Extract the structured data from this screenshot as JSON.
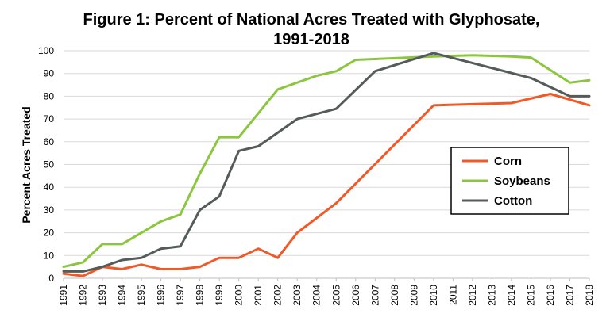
{
  "chart_data": {
    "type": "line",
    "title_line1": "Figure 1: Percent of National Acres Treated with Glyphosate,",
    "title_line2": "1991-2018",
    "ylabel": "Percent Acres Treated",
    "xlabel": "",
    "ylim": [
      0,
      100
    ],
    "y_ticks": [
      0,
      10,
      20,
      30,
      40,
      50,
      60,
      70,
      80,
      90,
      100
    ],
    "grid": "horizontal",
    "legend_position": "right",
    "x": [
      "1991",
      "1992",
      "1993",
      "1994",
      "1995",
      "1996",
      "1997",
      "1998",
      "1999",
      "2000",
      "2001",
      "2002",
      "2003",
      "2004",
      "2005",
      "2006",
      "2007",
      "2008",
      "2009",
      "2010",
      "2011",
      "2012",
      "2013",
      "2014",
      "2015",
      "2016",
      "2017",
      "2018"
    ],
    "series": [
      {
        "name": "Corn",
        "color": "#f05a28",
        "points": [
          [
            1991,
            2
          ],
          [
            1992,
            1
          ],
          [
            1993,
            5
          ],
          [
            1994,
            4
          ],
          [
            1995,
            6
          ],
          [
            1996,
            4
          ],
          [
            1997,
            4
          ],
          [
            1998,
            5
          ],
          [
            1999,
            9
          ],
          [
            2000,
            9
          ],
          [
            2001,
            13
          ],
          [
            2002,
            9
          ],
          [
            2003,
            20
          ],
          [
            2005,
            33
          ],
          [
            2010,
            76
          ],
          [
            2012,
            76.5
          ],
          [
            2014,
            77
          ],
          [
            2016,
            81
          ],
          [
            2018,
            76
          ]
        ]
      },
      {
        "name": "Soybeans",
        "color": "#8cc63f",
        "points": [
          [
            1991,
            5
          ],
          [
            1992,
            7
          ],
          [
            1993,
            15
          ],
          [
            1994,
            15
          ],
          [
            1995,
            20
          ],
          [
            1996,
            25
          ],
          [
            1997,
            28
          ],
          [
            1998,
            46
          ],
          [
            1999,
            62
          ],
          [
            2000,
            62
          ],
          [
            2002,
            83
          ],
          [
            2004,
            89
          ],
          [
            2005,
            91
          ],
          [
            2006,
            96
          ],
          [
            2010,
            97.5
          ],
          [
            2012,
            98
          ],
          [
            2014,
            97.5
          ],
          [
            2015,
            97
          ],
          [
            2017,
            86
          ],
          [
            2018,
            87
          ]
        ]
      },
      {
        "name": "Cotton",
        "color": "#555b5a",
        "points": [
          [
            1991,
            3
          ],
          [
            1992,
            3
          ],
          [
            1993,
            5
          ],
          [
            1994,
            8
          ],
          [
            1995,
            9
          ],
          [
            1996,
            13
          ],
          [
            1997,
            14
          ],
          [
            1998,
            30
          ],
          [
            1999,
            36
          ],
          [
            2000,
            56
          ],
          [
            2001,
            58
          ],
          [
            2003,
            70
          ],
          [
            2005,
            74.5
          ],
          [
            2007,
            91
          ],
          [
            2010,
            99
          ],
          [
            2015,
            88
          ],
          [
            2017,
            80
          ],
          [
            2018,
            80
          ]
        ]
      }
    ]
  }
}
